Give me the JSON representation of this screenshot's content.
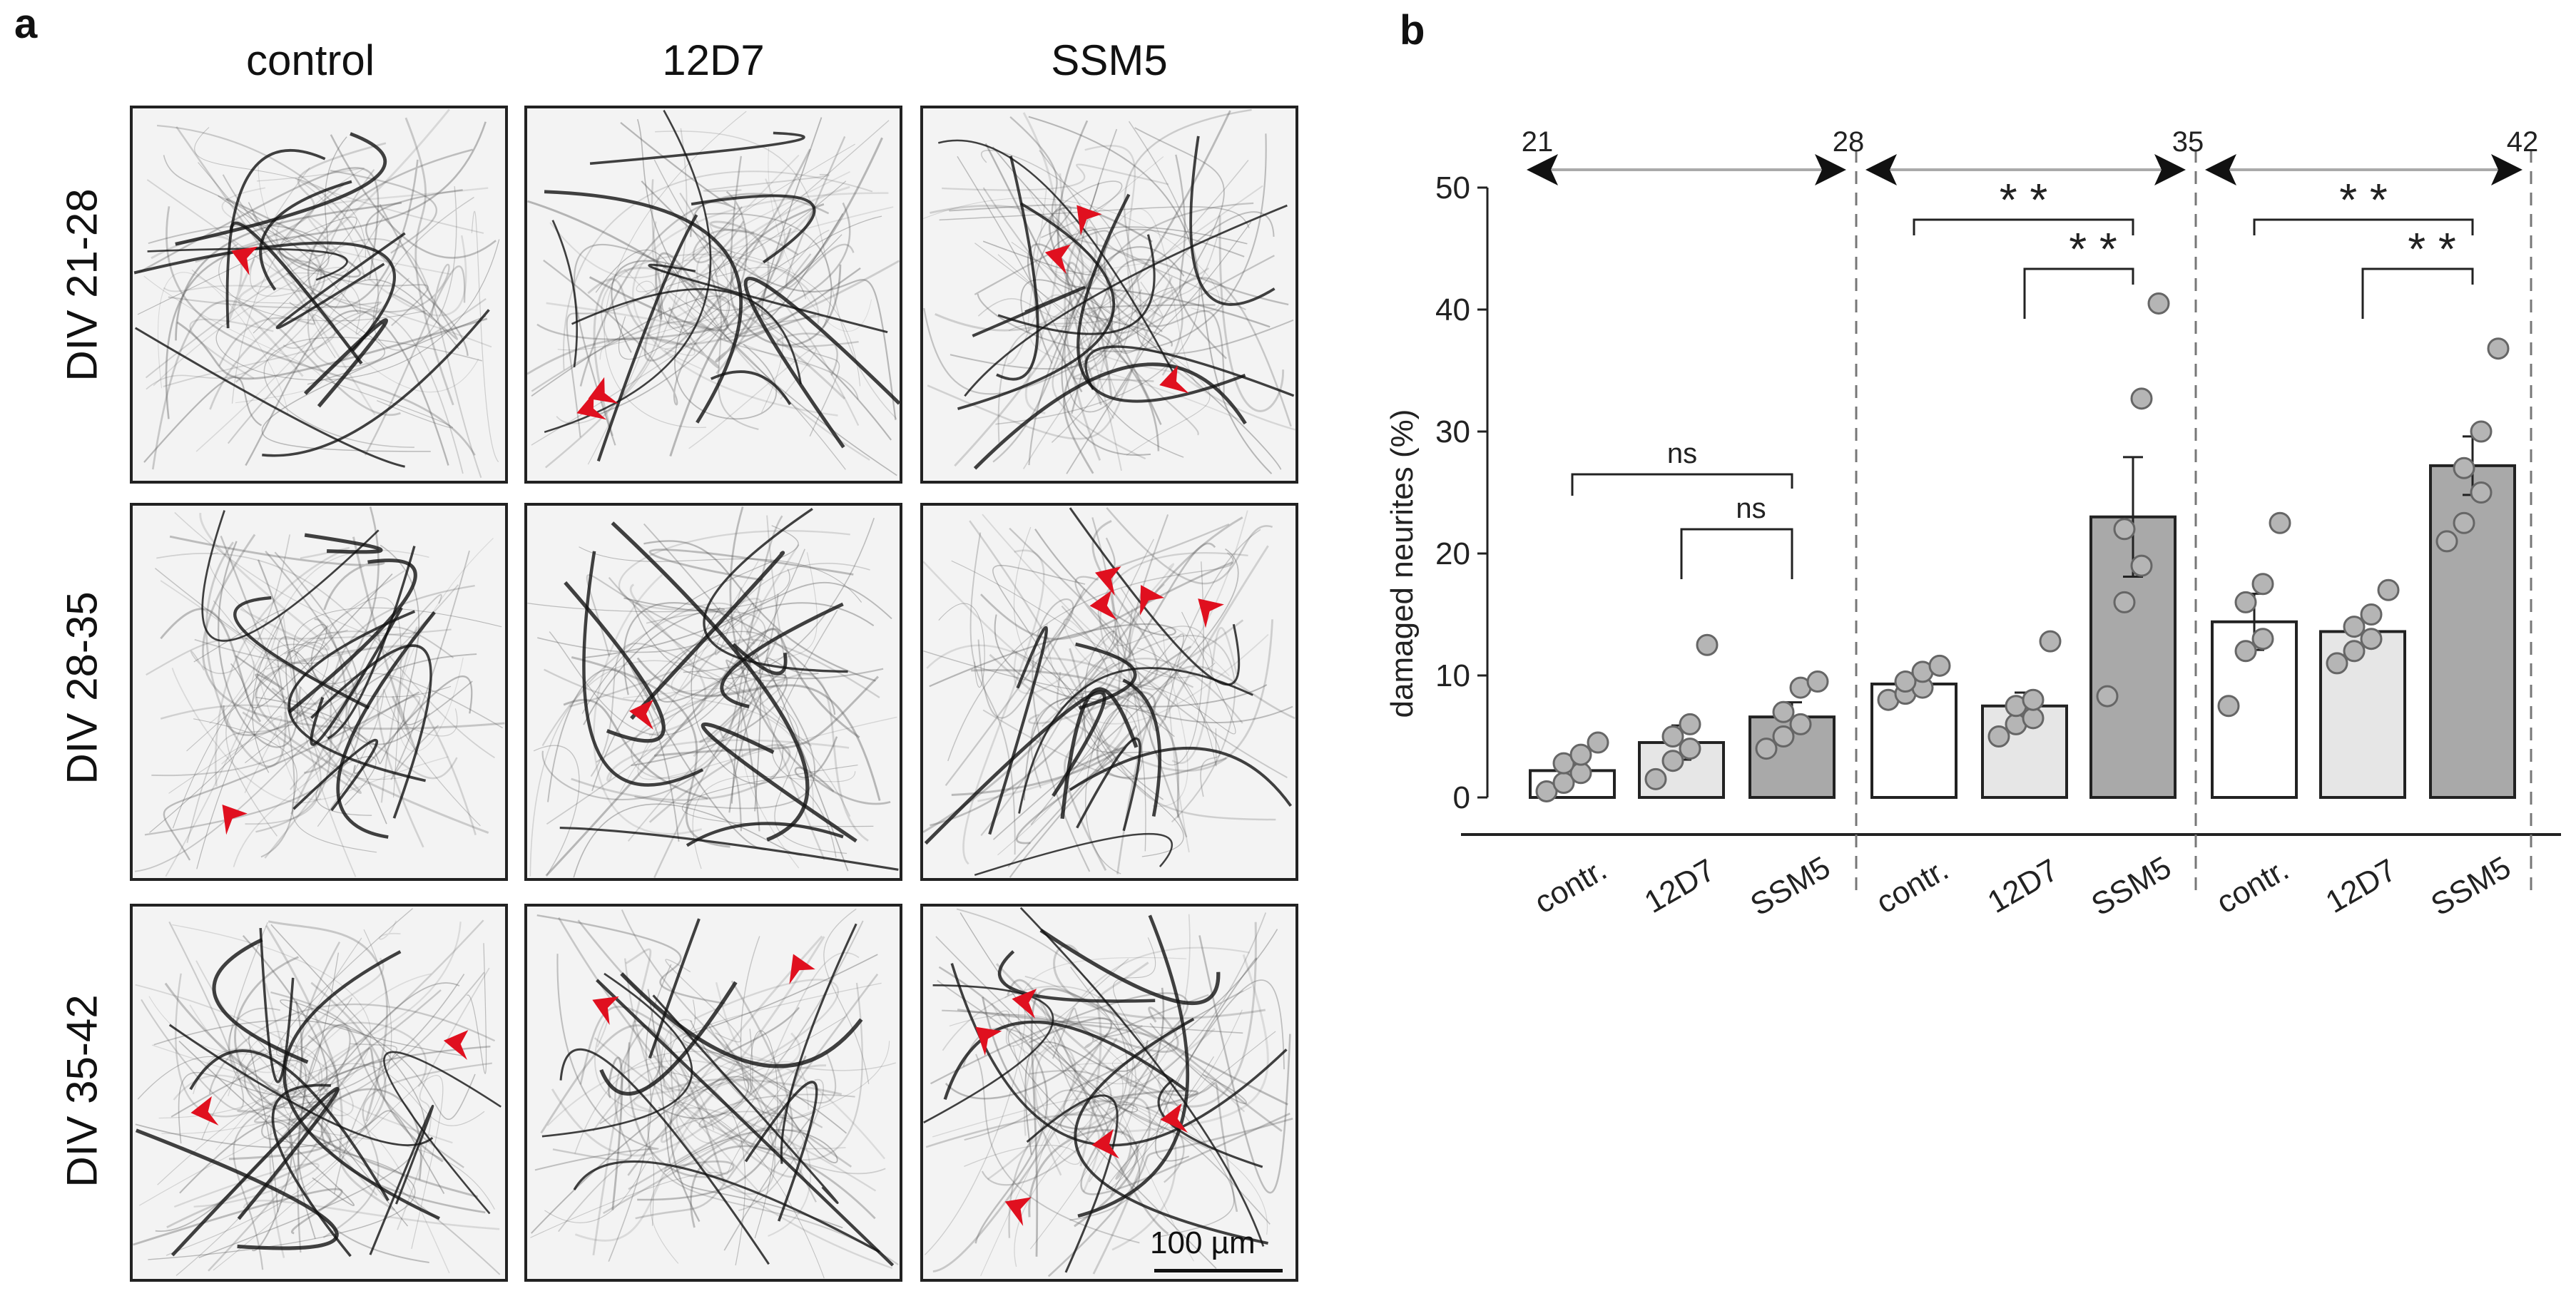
{
  "panel_a": {
    "letter": "a",
    "columns": [
      "control",
      "12D7",
      "SSM5"
    ],
    "rows": [
      "DIV 21-28",
      "DIV 28-35",
      "DIV 35-42"
    ],
    "scale_bar": "100 µm",
    "arrow_color": "#e0101f"
  },
  "chart_data": {
    "letter": "b",
    "type": "bar",
    "ylabel": "damaged neurites (%)",
    "ylim": [
      0,
      50
    ],
    "yticks": [
      "0",
      "10",
      "20",
      "30",
      "40",
      "50"
    ],
    "timeline": [
      "21",
      "28",
      "35",
      "42"
    ],
    "groups": [
      {
        "period": "DIV 21-28",
        "categories": [
          "contr.",
          "12D7",
          "SSM5"
        ],
        "values": [
          2.2,
          4.5,
          6.6
        ],
        "sem": [
          0.6,
          1.4,
          1.2
        ],
        "points": [
          [
            0.5,
            1.2,
            2.0,
            2.8,
            3.5,
            4.5
          ],
          [
            1.5,
            3.0,
            4.0,
            5.0,
            6.0,
            12.5
          ],
          [
            4.0,
            5.0,
            6.0,
            7.0,
            9.0,
            9.5
          ]
        ],
        "significance": [
          {
            "from": 0,
            "to": 2,
            "label": "ns"
          },
          {
            "from": 1,
            "to": 2,
            "label": "ns"
          }
        ]
      },
      {
        "period": "DIV 28-35",
        "categories": [
          "contr.",
          "12D7",
          "SSM5"
        ],
        "values": [
          9.3,
          7.5,
          23.0
        ],
        "sem": [
          0.5,
          1.1,
          4.9
        ],
        "points": [
          [
            8.0,
            8.5,
            9.0,
            9.5,
            10.3,
            10.8
          ],
          [
            5.0,
            6.0,
            6.5,
            7.5,
            8.0,
            12.8
          ],
          [
            8.3,
            16.0,
            19.0,
            22.0,
            32.7,
            40.5
          ]
        ],
        "significance": [
          {
            "from": 0,
            "to": 2,
            "label": "* *"
          },
          {
            "from": 1,
            "to": 2,
            "label": "* *"
          }
        ]
      },
      {
        "period": "DIV 35-42",
        "categories": [
          "contr.",
          "12D7",
          "SSM5"
        ],
        "values": [
          14.4,
          13.6,
          27.2
        ],
        "sem": [
          2.3,
          1.0,
          2.4
        ],
        "points": [
          [
            7.5,
            12.0,
            13.0,
            16.0,
            17.5,
            22.5
          ],
          [
            11.0,
            12.0,
            13.0,
            14.0,
            15.0,
            17.0
          ],
          [
            21.0,
            22.5,
            25.0,
            27.0,
            30.0,
            36.8
          ]
        ],
        "significance": [
          {
            "from": 0,
            "to": 2,
            "label": "* *"
          },
          {
            "from": 1,
            "to": 2,
            "label": "* *"
          }
        ]
      }
    ],
    "fills": [
      "#ffffff",
      "#e6e6e6",
      "#a9a9a9"
    ],
    "point_color": "#b5b5b5"
  }
}
